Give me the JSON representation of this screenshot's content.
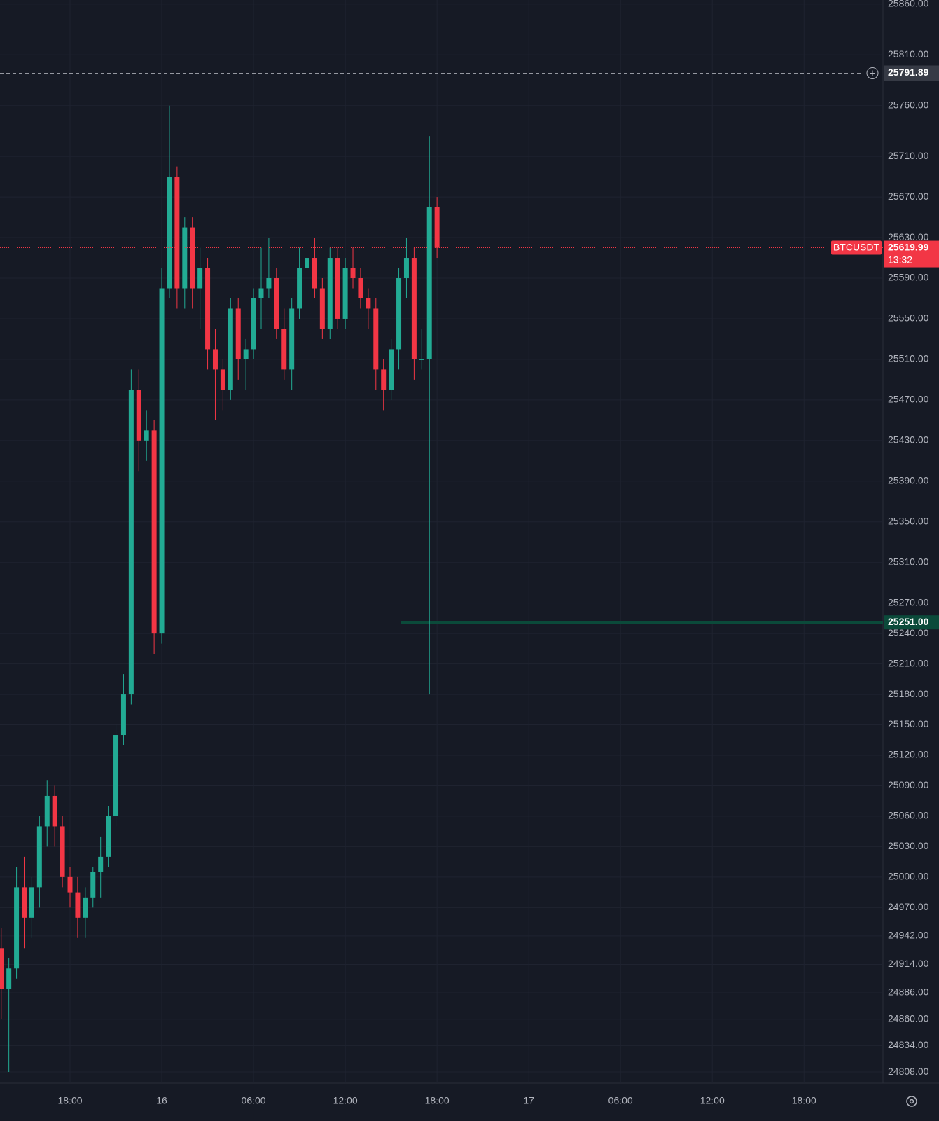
{
  "chart_data": {
    "type": "candlestick",
    "symbol": "BTCUSDT",
    "countdown": "13:32",
    "last_price": 25619.99,
    "up_color": "#22ab94",
    "down_color": "#f23645",
    "grid": true,
    "categories": [
      null,
      null,
      null,
      null,
      null,
      null,
      null,
      null,
      null,
      "18:00",
      null,
      null,
      null,
      null,
      null,
      null,
      null,
      null,
      null,
      null,
      null,
      "16",
      null,
      null,
      null,
      null,
      null,
      null,
      null,
      null,
      null,
      null,
      null,
      "06:00",
      null,
      null,
      null,
      null,
      null,
      null,
      null,
      null,
      null,
      null,
      null,
      "12:00",
      null,
      null,
      null,
      null,
      null,
      null,
      null,
      null,
      null,
      null,
      null,
      "18:00"
    ],
    "future_xticks": [
      "17",
      "06:00",
      "12:00",
      "18:00"
    ],
    "open": [
      24930,
      24890,
      24910,
      24990,
      24960,
      24990,
      25050,
      25080,
      25050,
      25000,
      24985,
      24960,
      24980,
      25005,
      25020,
      25060,
      25140,
      25180,
      25480,
      25430,
      25440,
      25240,
      25580,
      25690,
      25580,
      25640,
      25580,
      25600,
      25520,
      25500,
      25480,
      25560,
      25510,
      25520,
      25570,
      25580,
      25590,
      25540,
      25500,
      25560,
      25600,
      25610,
      25580,
      25540,
      25610,
      25550,
      25600,
      25590,
      25570,
      25560,
      25500,
      25480,
      25520,
      25590,
      25610,
      25510,
      25510,
      25660
    ],
    "high": [
      24950,
      24920,
      25010,
      25020,
      25000,
      25060,
      25095,
      25090,
      25060,
      25010,
      25000,
      24990,
      25010,
      25040,
      25070,
      25150,
      25200,
      25500,
      25500,
      25460,
      25450,
      25600,
      25760,
      25700,
      25650,
      25650,
      25620,
      25610,
      25540,
      25510,
      25570,
      25570,
      25530,
      25580,
      25620,
      25630,
      25600,
      25560,
      25570,
      25620,
      25625,
      25630,
      25590,
      25620,
      25620,
      25610,
      25620,
      25600,
      25580,
      25570,
      25510,
      25530,
      25600,
      25630,
      25620,
      25540,
      25730,
      25670
    ],
    "low": [
      24860,
      24808,
      24900,
      24930,
      24940,
      24970,
      25030,
      25030,
      24990,
      24970,
      24940,
      24940,
      24970,
      24980,
      25010,
      25050,
      25130,
      25170,
      25400,
      25410,
      25220,
      25230,
      25570,
      25560,
      25560,
      25560,
      25540,
      25500,
      25450,
      25460,
      25470,
      25490,
      25480,
      25510,
      25540,
      25570,
      25530,
      25490,
      25480,
      25550,
      25580,
      25570,
      25530,
      25530,
      25540,
      25540,
      25580,
      25560,
      25540,
      25480,
      25460,
      25470,
      25500,
      25570,
      25490,
      25500,
      25180,
      25610
    ],
    "close": [
      24890,
      24910,
      24990,
      24960,
      24990,
      25050,
      25080,
      25050,
      25000,
      24985,
      24960,
      24980,
      25005,
      25020,
      25060,
      25140,
      25180,
      25480,
      25430,
      25440,
      25240,
      25580,
      25690,
      25580,
      25640,
      25580,
      25600,
      25520,
      25500,
      25480,
      25560,
      25510,
      25520,
      25570,
      25580,
      25590,
      25540,
      25500,
      25560,
      25600,
      25610,
      25580,
      25540,
      25610,
      25550,
      25600,
      25590,
      25570,
      25560,
      25500,
      25480,
      25520,
      25590,
      25610,
      25510,
      25510,
      25660,
      25619.99
    ],
    "ylim": [
      24797,
      25864
    ],
    "yticks": [
      {
        "value": 25860,
        "label": "25860.00"
      },
      {
        "value": 25810,
        "label": "25810.00"
      },
      {
        "value": 25760,
        "label": "25760.00"
      },
      {
        "value": 25710,
        "label": "25710.00"
      },
      {
        "value": 25670,
        "label": "25670.00"
      },
      {
        "value": 25630,
        "label": "25630.00"
      },
      {
        "value": 25590,
        "label": "25590.00"
      },
      {
        "value": 25550,
        "label": "25550.00"
      },
      {
        "value": 25510,
        "label": "25510.00"
      },
      {
        "value": 25470,
        "label": "25470.00"
      },
      {
        "value": 25430,
        "label": "25430.00"
      },
      {
        "value": 25390,
        "label": "25390.00"
      },
      {
        "value": 25350,
        "label": "25350.00"
      },
      {
        "value": 25310,
        "label": "25310.00"
      },
      {
        "value": 25270,
        "label": "25270.00"
      },
      {
        "value": 25240,
        "label": "25240.00"
      },
      {
        "value": 25210,
        "label": "25210.00"
      },
      {
        "value": 25180,
        "label": "25180.00"
      },
      {
        "value": 25150,
        "label": "25150.00"
      },
      {
        "value": 25120,
        "label": "25120.00"
      },
      {
        "value": 25090,
        "label": "25090.00"
      },
      {
        "value": 25060,
        "label": "25060.00"
      },
      {
        "value": 25030,
        "label": "25030.00"
      },
      {
        "value": 25000,
        "label": "25000.00"
      },
      {
        "value": 24970,
        "label": "24970.00"
      },
      {
        "value": 24942,
        "label": "24942.00"
      },
      {
        "value": 24914,
        "label": "24914.00"
      },
      {
        "value": 24886,
        "label": "24886.00"
      },
      {
        "value": 24860,
        "label": "24860.00"
      },
      {
        "value": 24834,
        "label": "24834.00"
      },
      {
        "value": 24808,
        "label": "24808.00"
      }
    ],
    "alert_line": 25791.89,
    "green_line": {
      "value": 25251.0,
      "label": "25251.00"
    }
  }
}
